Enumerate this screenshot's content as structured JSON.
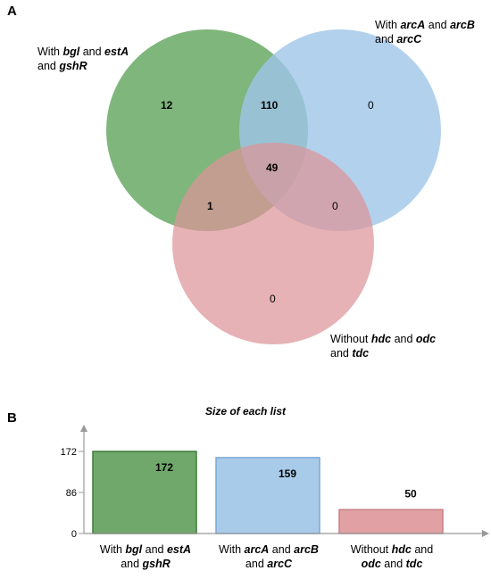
{
  "panel_a_label": "A",
  "panel_b_label": "B",
  "venn": {
    "sets": [
      {
        "key": "green",
        "color": "#6fa86a",
        "label": [
          [
            "With ",
            false
          ],
          [
            "bgl",
            true
          ],
          [
            " and ",
            false
          ],
          [
            "estA",
            true
          ],
          [
            " and ",
            false
          ],
          [
            "gshR",
            true
          ]
        ]
      },
      {
        "key": "blue",
        "color": "#9fc5e8",
        "label": [
          [
            "With ",
            false
          ],
          [
            "arcA",
            true
          ],
          [
            " and ",
            false
          ],
          [
            "arcB",
            true
          ],
          [
            " and ",
            false
          ],
          [
            "arcC",
            true
          ]
        ]
      },
      {
        "key": "red",
        "color": "#e0a0a4",
        "label": [
          [
            "Without ",
            false
          ],
          [
            "hdc",
            true
          ],
          [
            " and ",
            false
          ],
          [
            "odc",
            true
          ],
          [
            " and ",
            false
          ],
          [
            "tdc",
            true
          ]
        ]
      }
    ],
    "regions": {
      "green_only": "12",
      "green_blue": "110",
      "blue_only": "0",
      "all_three": "49",
      "green_red": "1",
      "blue_red": "0",
      "red_only": "0"
    }
  },
  "chart_data": {
    "type": "bar",
    "title": "Size of each list",
    "categories": [
      "With bgl and estA and gshR",
      "With arcA and arcB and arcC",
      "Without hdc and odc and tdc"
    ],
    "values": [
      172,
      159,
      50
    ],
    "value_labels": [
      "172",
      "159",
      "50"
    ],
    "yticks": [
      0,
      86,
      172
    ],
    "ytick_labels": [
      "0",
      "86",
      "172"
    ],
    "ylim": [
      0,
      172
    ],
    "colors": [
      "#6fa86a",
      "#a9cbea",
      "#e0a0a4"
    ],
    "edge_colors": [
      "#3f7d3a",
      "#7aa8d6",
      "#c77f85"
    ]
  }
}
